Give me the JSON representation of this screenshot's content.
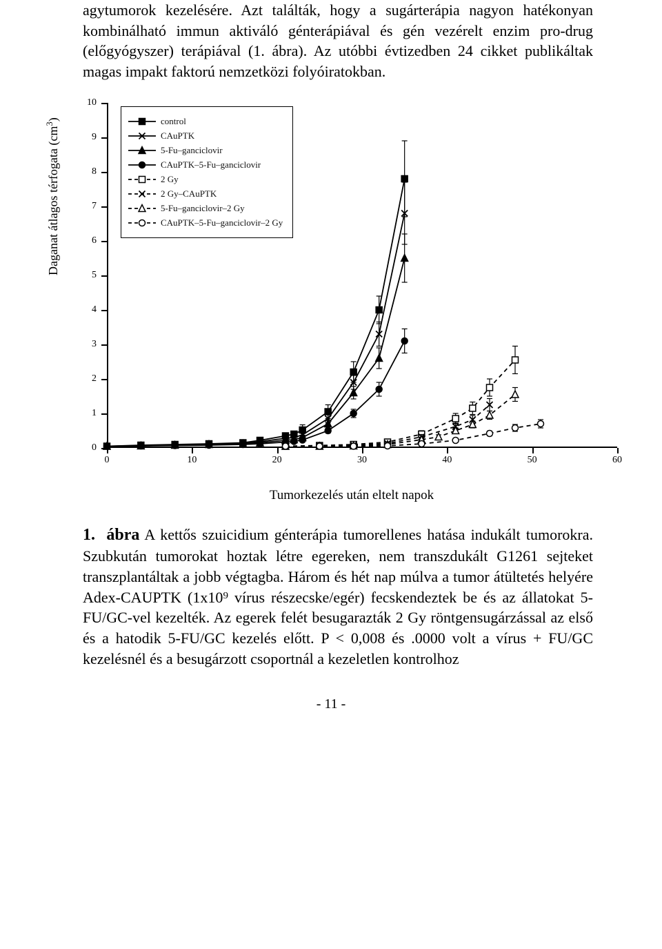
{
  "intro_text": "agytumorok kezelésére. Azt találták, hogy a sugárterápia nagyon hatékonyan kombinálható immun aktiváló génterápiával és gén vezérelt enzim pro-drug (előgyógyszer) terápiával (1. ábra). Az utóbbi évtizedben 24 cikket publikáltak magas impakt faktorú nemzetközi folyóiratokban.",
  "yaxis_label_pre": "Daganat átlagos térfogata (cm",
  "yaxis_label_sup": "3",
  "yaxis_label_post": ")",
  "xaxis_caption": "Tumorkezelés után eltelt napok",
  "fig_number": "1.",
  "fig_bold": "ábra",
  "fig_caption": "A kettős szuicidium génterápia tumorellenes hatása indukált tumorokra. Szubkután tumorokat hoztak létre egereken, nem transzdukált G1261 sejteket transzplantáltak a jobb végtagba. Három és hét nap múlva a tumor átültetés helyére Adex-CAUPTK (1x10⁹ vírus részecske/egér) fecskendeztek be és az állatokat 5-FU/GC-vel kezelték. Az egerek felét besugarazták 2 Gy röntgensugárzással az első és a hatodik 5-FU/GC kezelés előtt. P < 0,008 és .0000 volt a vírus + FU/GC kezelésnél és a besugárzott csoportnál a kezeletlen kontrolhoz",
  "page_number": "- 11 -",
  "chart": {
    "type": "line_with_markers",
    "xlim": [
      0,
      60
    ],
    "ylim": [
      0,
      10
    ],
    "xtick_step": 10,
    "ytick_step": 1,
    "background_color": "#ffffff",
    "series": [
      {
        "name": "control",
        "label": "control",
        "marker": "square_filled",
        "dash": "solid",
        "color": "#000000",
        "points": [
          {
            "x": 0,
            "y": 0.05,
            "err": 0
          },
          {
            "x": 4,
            "y": 0.08,
            "err": 0
          },
          {
            "x": 8,
            "y": 0.1,
            "err": 0
          },
          {
            "x": 12,
            "y": 0.12,
            "err": 0
          },
          {
            "x": 16,
            "y": 0.15,
            "err": 0
          },
          {
            "x": 18,
            "y": 0.22,
            "err": 0.05
          },
          {
            "x": 21,
            "y": 0.35,
            "err": 0.08
          },
          {
            "x": 22,
            "y": 0.4,
            "err": 0.08
          },
          {
            "x": 23,
            "y": 0.52,
            "err": 0.15
          },
          {
            "x": 26,
            "y": 1.05,
            "err": 0.2
          },
          {
            "x": 29,
            "y": 2.2,
            "err": 0.3
          },
          {
            "x": 32,
            "y": 4.0,
            "err": 0.4
          },
          {
            "x": 35,
            "y": 7.8,
            "err": 1.1
          }
        ]
      },
      {
        "name": "cauptk",
        "label": "CAuPTK",
        "marker": "x",
        "dash": "solid",
        "color": "#000000",
        "points": [
          {
            "x": 0,
            "y": 0.05,
            "err": 0
          },
          {
            "x": 4,
            "y": 0.07,
            "err": 0
          },
          {
            "x": 8,
            "y": 0.09,
            "err": 0
          },
          {
            "x": 12,
            "y": 0.11,
            "err": 0
          },
          {
            "x": 16,
            "y": 0.13,
            "err": 0
          },
          {
            "x": 18,
            "y": 0.18,
            "err": 0.03
          },
          {
            "x": 21,
            "y": 0.28,
            "err": 0.05
          },
          {
            "x": 22,
            "y": 0.3,
            "err": 0.05
          },
          {
            "x": 23,
            "y": 0.38,
            "err": 0.08
          },
          {
            "x": 26,
            "y": 0.85,
            "err": 0.12
          },
          {
            "x": 29,
            "y": 1.9,
            "err": 0.2
          },
          {
            "x": 32,
            "y": 3.3,
            "err": 0.35
          },
          {
            "x": 35,
            "y": 6.8,
            "err": 0.9
          }
        ]
      },
      {
        "name": "5fu_ganc",
        "label": "5-Fu–ganciclovir",
        "marker": "triangle_filled",
        "dash": "solid",
        "color": "#000000",
        "points": [
          {
            "x": 0,
            "y": 0.05,
            "err": 0
          },
          {
            "x": 4,
            "y": 0.06,
            "err": 0
          },
          {
            "x": 8,
            "y": 0.08,
            "err": 0
          },
          {
            "x": 12,
            "y": 0.1,
            "err": 0
          },
          {
            "x": 16,
            "y": 0.12,
            "err": 0
          },
          {
            "x": 18,
            "y": 0.15,
            "err": 0.03
          },
          {
            "x": 21,
            "y": 0.22,
            "err": 0.04
          },
          {
            "x": 22,
            "y": 0.24,
            "err": 0.04
          },
          {
            "x": 23,
            "y": 0.3,
            "err": 0.06
          },
          {
            "x": 26,
            "y": 0.7,
            "err": 0.1
          },
          {
            "x": 29,
            "y": 1.6,
            "err": 0.18
          },
          {
            "x": 32,
            "y": 2.6,
            "err": 0.3
          },
          {
            "x": 35,
            "y": 5.5,
            "err": 0.7
          }
        ]
      },
      {
        "name": "cauptk_5fu_ganc",
        "label": "CAuPTK–5-Fu–ganciclovir",
        "marker": "circle_filled",
        "dash": "solid",
        "color": "#000000",
        "points": [
          {
            "x": 0,
            "y": 0.05,
            "err": 0
          },
          {
            "x": 4,
            "y": 0.06,
            "err": 0
          },
          {
            "x": 8,
            "y": 0.07,
            "err": 0
          },
          {
            "x": 12,
            "y": 0.08,
            "err": 0
          },
          {
            "x": 16,
            "y": 0.1,
            "err": 0
          },
          {
            "x": 18,
            "y": 0.12,
            "err": 0.02
          },
          {
            "x": 21,
            "y": 0.17,
            "err": 0.03
          },
          {
            "x": 22,
            "y": 0.19,
            "err": 0.03
          },
          {
            "x": 23,
            "y": 0.23,
            "err": 0.04
          },
          {
            "x": 26,
            "y": 0.5,
            "err": 0.07
          },
          {
            "x": 29,
            "y": 1.0,
            "err": 0.12
          },
          {
            "x": 32,
            "y": 1.7,
            "err": 0.2
          },
          {
            "x": 35,
            "y": 3.1,
            "err": 0.35
          }
        ]
      },
      {
        "name": "2gy",
        "label": "2 Gy",
        "marker": "square_open",
        "dash": "dashed",
        "color": "#000000",
        "points": [
          {
            "x": 21,
            "y": 0.05,
            "err": 0
          },
          {
            "x": 25,
            "y": 0.07,
            "err": 0
          },
          {
            "x": 29,
            "y": 0.1,
            "err": 0
          },
          {
            "x": 33,
            "y": 0.17,
            "err": 0.04
          },
          {
            "x": 37,
            "y": 0.4,
            "err": 0.1
          },
          {
            "x": 41,
            "y": 0.85,
            "err": 0.15
          },
          {
            "x": 43,
            "y": 1.15,
            "err": 0.18
          },
          {
            "x": 45,
            "y": 1.75,
            "err": 0.25
          },
          {
            "x": 48,
            "y": 2.55,
            "err": 0.4
          }
        ]
      },
      {
        "name": "2gy_cauptk",
        "label": "2 Gy–CAuPTK",
        "marker": "x_open",
        "dash": "dashed",
        "color": "#000000",
        "points": [
          {
            "x": 21,
            "y": 0.05,
            "err": 0
          },
          {
            "x": 25,
            "y": 0.06,
            "err": 0
          },
          {
            "x": 29,
            "y": 0.08,
            "err": 0
          },
          {
            "x": 33,
            "y": 0.13,
            "err": 0.03
          },
          {
            "x": 37,
            "y": 0.32,
            "err": 0.07
          },
          {
            "x": 41,
            "y": 0.62,
            "err": 0.1
          },
          {
            "x": 43,
            "y": 0.82,
            "err": 0.12
          },
          {
            "x": 45,
            "y": 1.25,
            "err": 0.18
          }
        ]
      },
      {
        "name": "5fu_ganc_2gy",
        "label": "5-Fu–ganciclovir–2 Gy",
        "marker": "triangle_open",
        "dash": "dashed",
        "color": "#000000",
        "points": [
          {
            "x": 21,
            "y": 0.05,
            "err": 0
          },
          {
            "x": 25,
            "y": 0.05,
            "err": 0
          },
          {
            "x": 29,
            "y": 0.06,
            "err": 0
          },
          {
            "x": 33,
            "y": 0.1,
            "err": 0.02
          },
          {
            "x": 37,
            "y": 0.24,
            "err": 0.05
          },
          {
            "x": 39,
            "y": 0.32,
            "err": 0.06
          },
          {
            "x": 41,
            "y": 0.5,
            "err": 0.08
          },
          {
            "x": 43,
            "y": 0.68,
            "err": 0.1
          },
          {
            "x": 45,
            "y": 0.95,
            "err": 0.12
          },
          {
            "x": 48,
            "y": 1.55,
            "err": 0.2
          }
        ]
      },
      {
        "name": "cauptk_5fu_ganc_2gy",
        "label": "CAuPTK–5-Fu–ganciclovir–2 Gy",
        "marker": "circle_open",
        "dash": "dashed",
        "color": "#000000",
        "points": [
          {
            "x": 21,
            "y": 0.05,
            "err": 0
          },
          {
            "x": 25,
            "y": 0.05,
            "err": 0
          },
          {
            "x": 29,
            "y": 0.05,
            "err": 0
          },
          {
            "x": 33,
            "y": 0.06,
            "err": 0
          },
          {
            "x": 37,
            "y": 0.12,
            "err": 0.02
          },
          {
            "x": 41,
            "y": 0.22,
            "err": 0.04
          },
          {
            "x": 45,
            "y": 0.42,
            "err": 0.07
          },
          {
            "x": 48,
            "y": 0.58,
            "err": 0.1
          },
          {
            "x": 51,
            "y": 0.7,
            "err": 0.12
          }
        ]
      }
    ]
  }
}
